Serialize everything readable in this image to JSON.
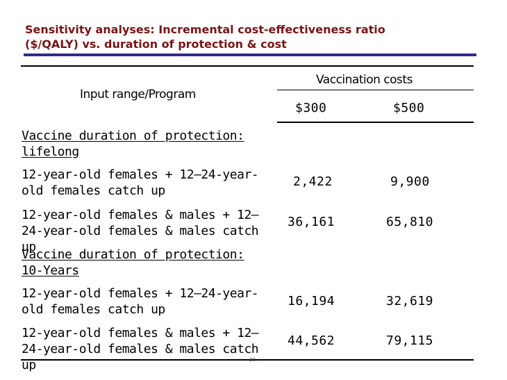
{
  "title": "Sensitivity analyses: Incremental cost-effectiveness ratio ($/QALY) vs. duration of protection & cost",
  "header": {
    "row_label": "Input range/Program",
    "group_label": "Vaccination costs",
    "columns": [
      "$300",
      "$500"
    ]
  },
  "sections": [
    {
      "heading": "Vaccine duration of protection: lifelong",
      "rows": [
        {
          "label": "12-year-old females + 12—24-year-old females catch up",
          "values": [
            "2,422",
            "9,900"
          ]
        },
        {
          "label": "12-year-old females & males + 12—24-year-old females & males catch up",
          "values": [
            "36,161",
            "65,810"
          ]
        }
      ]
    },
    {
      "heading": "Vaccine duration of protection: 10-Years",
      "rows": [
        {
          "label": "12-year-old females + 12—24-year-old females catch up",
          "values": [
            "16,194",
            "32,619"
          ]
        },
        {
          "label": "12-year-old females & males + 12—24-year-old females & males catch up",
          "values": [
            "44,562",
            "79,115"
          ]
        }
      ]
    }
  ],
  "page_number": "20",
  "colors": {
    "title": "#7a1416",
    "title_rule": "#2e2a8c"
  }
}
